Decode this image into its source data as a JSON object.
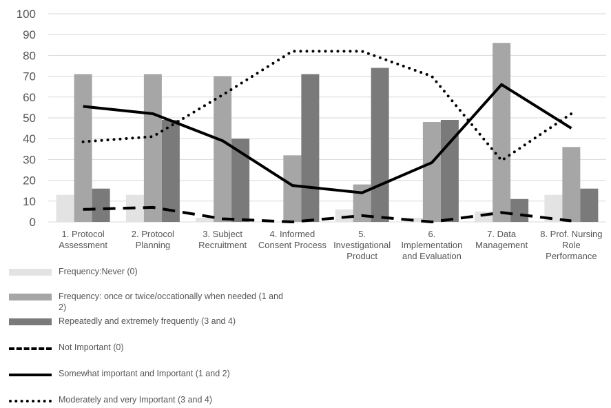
{
  "chart_data": {
    "type": "bar",
    "categories": [
      [
        "1. Protocol",
        "Assessment"
      ],
      [
        "2. Protocol",
        "Planning"
      ],
      [
        "3. Subject",
        "Recruitment"
      ],
      [
        "4. Informed",
        "Consent Process"
      ],
      [
        "5.",
        "Investigational",
        "Product"
      ],
      [
        "6.",
        "Implementation",
        "and Evaluation"
      ],
      [
        "7. Data",
        "Management"
      ],
      [
        "8. Prof. Nursing",
        "Role",
        "Performance"
      ]
    ],
    "ylim": [
      0,
      100
    ],
    "yticks": [
      0,
      10,
      20,
      30,
      40,
      50,
      60,
      70,
      80,
      90,
      100
    ],
    "grid": true,
    "legend_position": "bottom-left",
    "bar_series": [
      {
        "name": "Frequency:Never (0)",
        "color": "#e3e3e3",
        "values": [
          13,
          13,
          2,
          0,
          6,
          2,
          5,
          13
        ]
      },
      {
        "name": "Frequency: once or twice/occationally when needed (1 and 2)",
        "color": "#a6a6a6",
        "values": [
          71,
          71,
          70,
          32,
          18,
          48,
          86,
          36
        ]
      },
      {
        "name": "Repeatedly and extremely frequently (3 and 4)",
        "color": "#7a7a7a",
        "values": [
          16,
          49,
          40,
          71,
          74,
          49,
          11,
          16
        ]
      }
    ],
    "line_series": [
      {
        "name": "Not Important (0)",
        "style": "dashed",
        "color": "#000000",
        "values": [
          6,
          7,
          1.5,
          0,
          3,
          0,
          4.5,
          0.5
        ]
      },
      {
        "name": "Somewhat important and Important (1 and 2)",
        "style": "solid",
        "color": "#000000",
        "values": [
          55.5,
          52,
          39,
          17.5,
          14,
          28.5,
          66,
          45
        ]
      },
      {
        "name": "Moderately and very Important (3 and 4)",
        "style": "dotted",
        "color": "#000000",
        "values": [
          38.5,
          41,
          61,
          82,
          82,
          70,
          29.5,
          52
        ]
      }
    ]
  },
  "legend": {
    "items": [
      {
        "label": "Frequency:Never (0)"
      },
      {
        "label": "Frequency: once or twice/occationally when needed (1 and 2)"
      },
      {
        "label": "Repeatedly and extremely frequently (3 and 4)"
      },
      {
        "label": "Not Important (0)"
      },
      {
        "label": "Somewhat important and Important (1 and 2)"
      },
      {
        "label": "Moderately and very Important (3 and 4)"
      }
    ]
  }
}
